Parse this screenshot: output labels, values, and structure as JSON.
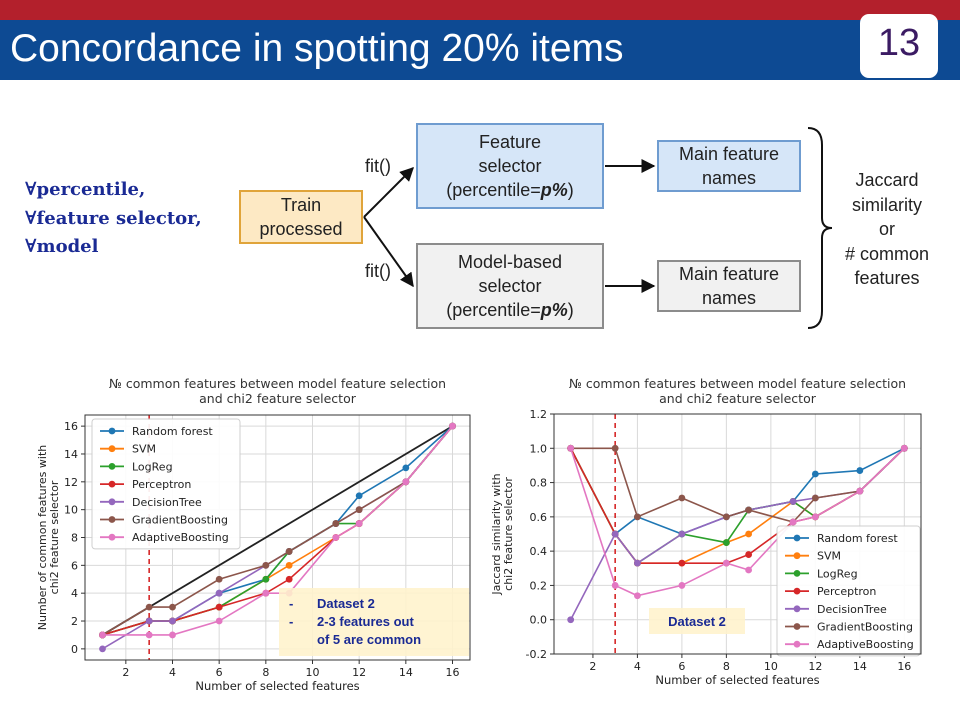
{
  "slide": {
    "title": "Concordance in spotting 20% items",
    "page_number": "13",
    "colors": {
      "top_bar": "#b3202c",
      "title_bar": "#0d4a93",
      "formula_text": "#1a2a94"
    }
  },
  "formula": {
    "line1": "∀percentile,",
    "line2": "∀feature selector,",
    "line3": "∀model"
  },
  "diagram": {
    "train_box": "Train\nprocessed",
    "fit_top": "fit()",
    "fit_bottom": "fit()",
    "feature_selector_box": {
      "line1": "Feature",
      "line2": "selector",
      "line3_prefix": "(percentile=",
      "line3_param": "p%",
      "line3_suffix": ")"
    },
    "model_selector_box": {
      "line1": "Model-based",
      "line2": "selector",
      "line3_prefix": "(percentile=",
      "line3_param": "p%",
      "line3_suffix": ")"
    },
    "main_features_top": "Main feature\nnames",
    "main_features_bottom": "Main feature\nnames",
    "metric_text": "Jaccard\nsimilarity\nor\n# common\nfeatures"
  },
  "chart_data": [
    {
      "type": "line",
      "title_line1": "№ common features between model feature selection",
      "title_line2": "and chi2 feature selector",
      "xlabel": "Number of selected features",
      "ylabel_line1": "Number of common features with",
      "ylabel_line2": "chi2 feature selector",
      "xlim": [
        0.25,
        16.75
      ],
      "ylim": [
        -0.8,
        16.8
      ],
      "xticks": [
        2,
        4,
        6,
        8,
        10,
        12,
        14,
        16
      ],
      "yticks": [
        0,
        2,
        4,
        6,
        8,
        10,
        12,
        14,
        16
      ],
      "grid": true,
      "legend_position": "upper-left",
      "reference_line": {
        "from": [
          1,
          1
        ],
        "to": [
          16,
          16
        ],
        "color": "#222222"
      },
      "vline": {
        "x": 3,
        "color": "#d62728",
        "style": "dashed"
      },
      "annotation": {
        "bullet1": "Dataset 2",
        "bullet2": "2-3 features out of 5 are common",
        "bullet2_line1": "2-3 features out",
        "bullet2_line2": "of 5 are common",
        "bullet_symbol": "-"
      },
      "x": [
        1,
        3,
        4,
        6,
        8,
        9,
        11,
        12,
        14,
        16
      ],
      "series": [
        {
          "name": "Random forest",
          "color": "#1f77b4",
          "values": [
            1,
            2,
            2,
            4,
            5,
            7,
            9,
            11,
            13,
            16
          ]
        },
        {
          "name": "SVM",
          "color": "#ff7f0e",
          "values": [
            1,
            2,
            2,
            3,
            5,
            6,
            8,
            9,
            12,
            16
          ]
        },
        {
          "name": "LogReg",
          "color": "#2ca02c",
          "values": [
            1,
            2,
            2,
            3,
            5,
            7,
            9,
            9,
            12,
            16
          ]
        },
        {
          "name": "Perceptron",
          "color": "#d62728",
          "values": [
            1,
            2,
            2,
            3,
            4,
            5,
            8,
            9,
            12,
            16
          ]
        },
        {
          "name": "DecisionTree",
          "color": "#9467bd",
          "values": [
            0,
            2,
            2,
            4,
            6,
            7,
            9,
            10,
            12,
            16
          ]
        },
        {
          "name": "GradientBoosting",
          "color": "#8c564b",
          "values": [
            1,
            3,
            3,
            5,
            6,
            7,
            9,
            10,
            12,
            16
          ]
        },
        {
          "name": "AdaptiveBoosting",
          "color": "#e377c2",
          "values": [
            1,
            1,
            1,
            2,
            4,
            4,
            8,
            9,
            12,
            16
          ]
        }
      ]
    },
    {
      "type": "line",
      "title_line1": "№ common features between model feature selection",
      "title_line2": "and chi2 feature selector",
      "xlabel": "Number of selected features",
      "ylabel_line1": "Jaccard similarity with",
      "ylabel_line2": "chi2 feature selector",
      "xlim": [
        0.25,
        16.75
      ],
      "ylim": [
        -0.2,
        1.2
      ],
      "xticks": [
        2,
        4,
        6,
        8,
        10,
        12,
        14,
        16
      ],
      "yticks": [
        -0.2,
        0.0,
        0.2,
        0.4,
        0.6,
        0.8,
        1.0,
        1.2
      ],
      "grid": true,
      "legend_position": "lower-right",
      "vline": {
        "x": 3,
        "color": "#d62728",
        "style": "dashed"
      },
      "annotation": {
        "text": "Dataset 2"
      },
      "x": [
        1,
        3,
        4,
        6,
        8,
        9,
        11,
        12,
        14,
        16
      ],
      "series": [
        {
          "name": "Random forest",
          "color": "#1f77b4",
          "values": [
            1.0,
            0.5,
            0.6,
            0.5,
            0.6,
            0.64,
            0.69,
            0.85,
            0.87,
            1.0
          ]
        },
        {
          "name": "SVM",
          "color": "#ff7f0e",
          "values": [
            1.0,
            0.5,
            0.33,
            0.33,
            0.45,
            0.5,
            0.69,
            0.6,
            0.75,
            1.0
          ]
        },
        {
          "name": "LogReg",
          "color": "#2ca02c",
          "values": [
            1.0,
            0.5,
            0.33,
            0.5,
            0.45,
            0.64,
            0.69,
            0.6,
            0.75,
            1.0
          ]
        },
        {
          "name": "Perceptron",
          "color": "#d62728",
          "values": [
            1.0,
            0.5,
            0.33,
            0.33,
            0.33,
            0.38,
            0.57,
            0.6,
            0.75,
            1.0
          ]
        },
        {
          "name": "DecisionTree",
          "color": "#9467bd",
          "values": [
            0.0,
            0.5,
            0.33,
            0.5,
            0.6,
            0.64,
            0.69,
            0.71,
            0.75,
            1.0
          ]
        },
        {
          "name": "GradientBoosting",
          "color": "#8c564b",
          "values": [
            1.0,
            1.0,
            0.6,
            0.71,
            0.6,
            0.64,
            0.57,
            0.71,
            0.75,
            1.0
          ]
        },
        {
          "name": "AdaptiveBoosting",
          "color": "#e377c2",
          "values": [
            1.0,
            0.2,
            0.14,
            0.2,
            0.33,
            0.29,
            0.57,
            0.6,
            0.75,
            1.0
          ]
        }
      ]
    }
  ]
}
